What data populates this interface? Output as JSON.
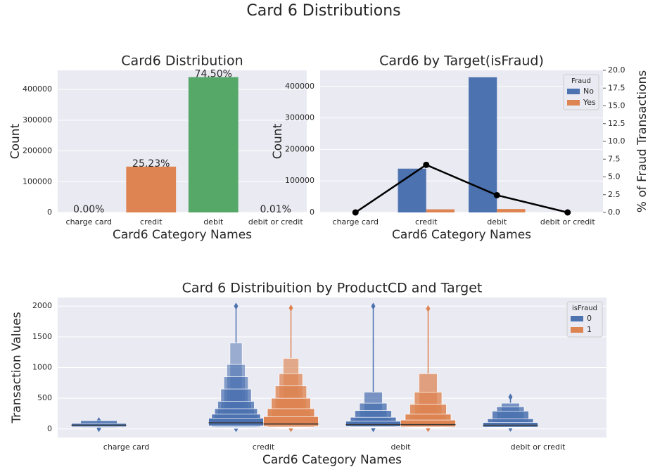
{
  "title": "Card 6 Distributions",
  "chart_data": [
    {
      "type": "bar",
      "title": "Card6 Distribution",
      "xlabel": "Card6 Category Names",
      "ylabel": "Count",
      "categories": [
        "charge card",
        "credit",
        "debit",
        "debit or credit"
      ],
      "values": [
        15,
        148990,
        439950,
        30
      ],
      "annotations": [
        "0.00%",
        "25.23%",
        "74.50%",
        "0.01%"
      ],
      "colors": [
        "#4c72b0",
        "#dd8452",
        "#55a868",
        "#c44e52"
      ],
      "ylim": [
        0,
        462000
      ],
      "yticks": [
        0,
        100000,
        200000,
        300000,
        400000
      ],
      "grid": true
    },
    {
      "type": "bar",
      "title": "Card6 by Target(isFraud)",
      "xlabel": "Card6 Category Names",
      "ylabel": "Count",
      "y2label": "% of Fraud Transactions",
      "categories": [
        "charge card",
        "credit",
        "debit",
        "debit or credit"
      ],
      "legend_title": "Fraud",
      "legend": "upper right",
      "series": [
        {
          "name": "No",
          "color": "#4c72b0",
          "values": [
            15,
            139000,
            429000,
            30
          ]
        },
        {
          "name": "Yes",
          "color": "#dd8452",
          "values": [
            0,
            9900,
            10900,
            0
          ]
        }
      ],
      "line": {
        "axis": "y2",
        "color": "#000000",
        "values": [
          0,
          6.7,
          2.43,
          0
        ]
      },
      "ylim": [
        0,
        451000
      ],
      "yticks": [
        0,
        100000,
        200000,
        300000,
        400000
      ],
      "y2lim": [
        0,
        20
      ],
      "y2ticks": [
        {
          "value": 0,
          "label": "0.0"
        },
        2.5,
        {
          "value": 5,
          "label": "5.0"
        },
        7.5,
        {
          "value": 10,
          "label": "10.0"
        },
        12.5,
        {
          "value": 15,
          "label": "15.0"
        },
        17.5,
        {
          "value": 20,
          "label": "20.0"
        }
      ],
      "grid": true
    },
    {
      "type": "boxen",
      "title": "Card 6 Distribuition by ProductCD and Target",
      "xlabel": "Card6 Category Names",
      "ylabel": "Transaction Values",
      "categories": [
        "charge card",
        "credit",
        "debit",
        "debit or credit"
      ],
      "legend_title": "isFraud",
      "legend": "upper right",
      "series": [
        {
          "name": "0",
          "color": "#4c72b0",
          "values": [
            {
              "median": 60,
              "letter_values": [
                [
                  35,
                  90
                ],
                [
                  25,
                  135
                ]
              ],
              "outliers": [
                5,
                135
              ]
            },
            {
              "median": 100,
              "letter_values": [
                [
                  50,
                  175
                ],
                [
                  35,
                  240
                ],
                [
                  25,
                  330
                ],
                [
                  20,
                  450
                ],
                [
                  15,
                  650
                ],
                [
                  12,
                  850
                ],
                [
                  10,
                  1050
                ],
                [
                  8,
                  1400
                ]
              ],
              "outliers": [
                5,
                2000
              ]
            },
            {
              "median": 70,
              "letter_values": [
                [
                  40,
                  125
                ],
                [
                  30,
                  190
                ],
                [
                  25,
                  300
                ],
                [
                  20,
                  420
                ],
                [
                  15,
                  600
                ]
              ],
              "outliers": [
                5,
                2000
              ]
            },
            {
              "median": 60,
              "letter_values": [
                [
                  30,
                  105
                ],
                [
                  25,
                  165
                ],
                [
                  20,
                  290
                ],
                [
                  15,
                  360
                ],
                [
                  12,
                  420
                ]
              ],
              "outliers": [
                10,
                520
              ]
            }
          ]
        },
        {
          "name": "1",
          "color": "#dd8452",
          "values": [
            null,
            {
              "median": 80,
              "letter_values": [
                [
                  45,
                  200
                ],
                [
                  30,
                  330
                ],
                [
                  25,
                  500
                ],
                [
                  20,
                  700
                ],
                [
                  15,
                  900
                ],
                [
                  12,
                  1150
                ]
              ],
              "outliers": [
                5,
                1970
              ]
            },
            {
              "median": 70,
              "letter_values": [
                [
                  35,
                  145
                ],
                [
                  28,
                  240
                ],
                [
                  22,
                  400
                ],
                [
                  18,
                  600
                ],
                [
                  15,
                  900
                ]
              ],
              "outliers": [
                5,
                1960
              ]
            },
            null
          ]
        }
      ],
      "ylim": [
        -140,
        2140
      ],
      "yticks": [
        0,
        500,
        1000,
        1500,
        2000
      ],
      "grid": true
    }
  ]
}
